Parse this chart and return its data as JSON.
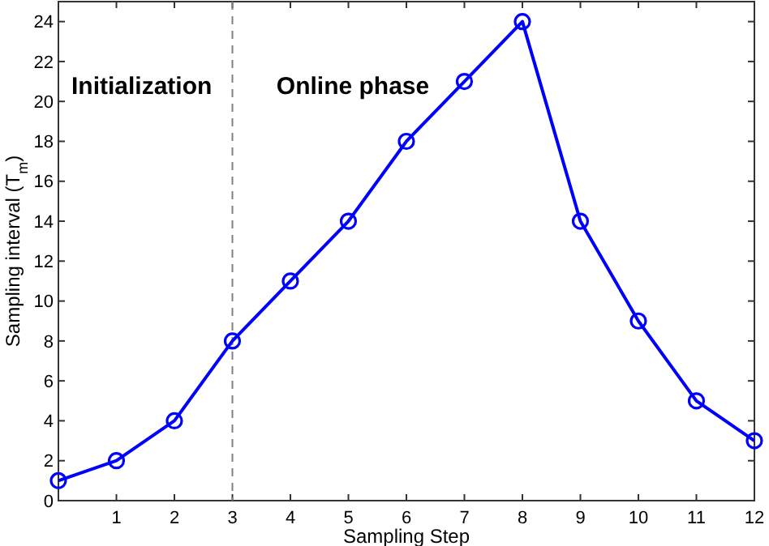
{
  "chart_data": {
    "type": "line",
    "xlabel": "Sampling Step",
    "ylabel": "Sampling interval (T$_{m}$)",
    "x": [
      0,
      1,
      2,
      3,
      4,
      5,
      6,
      7,
      8,
      9,
      10,
      11,
      12
    ],
    "series": [
      {
        "color": "#0000ff",
        "values": [
          1,
          2,
          4,
          8,
          11,
          14,
          18,
          21,
          24,
          14,
          9,
          5,
          3
        ]
      }
    ],
    "xlim": [
      0,
      12
    ],
    "xticks": [
      1,
      2,
      3,
      4,
      5,
      6,
      7,
      8,
      9,
      10,
      11,
      12
    ],
    "ylim": [
      0,
      25
    ],
    "yticks": [
      0,
      2,
      4,
      6,
      8,
      10,
      12,
      14,
      16,
      18,
      20,
      22,
      24
    ],
    "ref_lines": [
      {
        "axis": "x",
        "value": 3,
        "color": "#808080",
        "line_style": "dashed"
      }
    ],
    "annotations": [
      "Initialization",
      "Online phase"
    ],
    "marker": "circle",
    "line_style": "solid",
    "grid": false
  }
}
